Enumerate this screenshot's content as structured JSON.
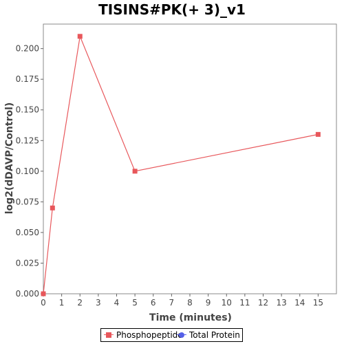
{
  "chart_data": {
    "type": "line",
    "title": "TISINS#PK(+ 3)_v1",
    "xlabel": "Time (minutes)",
    "ylabel": "log2(dDAVP/Control)",
    "xlim": [
      0,
      16
    ],
    "ylim": [
      0,
      0.22
    ],
    "x_ticks": [
      "0",
      "1",
      "2",
      "3",
      "4",
      "5",
      "6",
      "7",
      "8",
      "9",
      "10",
      "11",
      "12",
      "13",
      "14",
      "15"
    ],
    "y_ticks": [
      "0.000",
      "0.025",
      "0.050",
      "0.075",
      "0.100",
      "0.125",
      "0.150",
      "0.175",
      "0.200"
    ],
    "grid": false,
    "legend_position": "bottom",
    "series": [
      {
        "name": "Phosphopeptide",
        "color": "#e8575b",
        "marker": "square",
        "x": [
          0,
          0.5,
          2,
          5,
          15
        ],
        "y": [
          0,
          0.07,
          0.21,
          0.1,
          0.13
        ]
      },
      {
        "name": "Total Protein",
        "color": "#5560e8",
        "marker": "circle",
        "x": [],
        "y": []
      }
    ]
  }
}
